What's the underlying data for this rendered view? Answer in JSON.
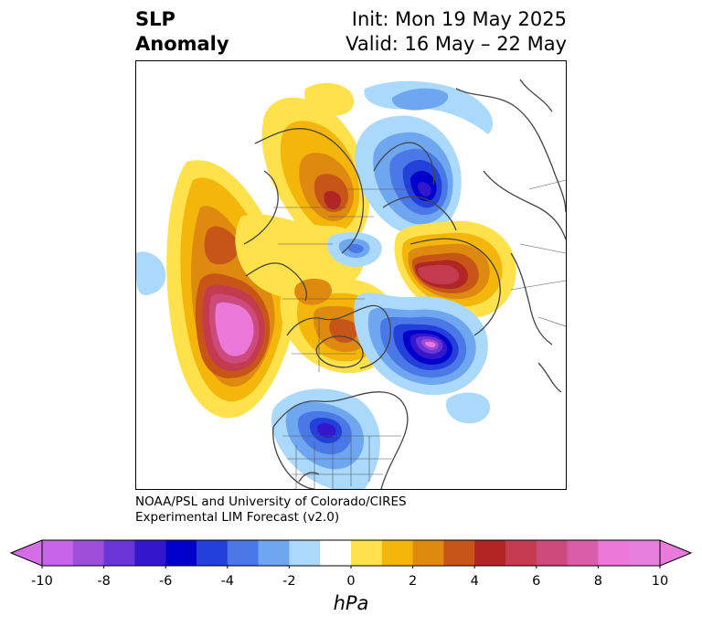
{
  "header": {
    "variable_line1": "SLP",
    "variable_line2": "Anomaly",
    "init_text": "Init: Mon 19 May 2025",
    "valid_text": "Valid: 16 May – 22 May"
  },
  "credit": {
    "line1": "NOAA/PSL and University of Colorado/CIRES",
    "line2": "Experimental LIM Forecast (v2.0)"
  },
  "colorbar": {
    "unit": "hPa",
    "levels": [
      -10,
      -9,
      -8,
      -7,
      -6,
      -5,
      -4,
      -3,
      -2,
      -1,
      1,
      2,
      3,
      4,
      5,
      6,
      7,
      8,
      9,
      10
    ],
    "colors": [
      "#c764e9",
      "#9c4ed9",
      "#6a35d6",
      "#3417cc",
      "#0000cd",
      "#2341da",
      "#4a78e6",
      "#6fa6f0",
      "#abd9fb",
      "#ffffff",
      "#ffe14b",
      "#f4b60a",
      "#de8a10",
      "#c85518",
      "#b12525",
      "#c43b4f",
      "#cc4a7c",
      "#d85ca8",
      "#e978d9",
      "#e67ede"
    ],
    "ticks": [
      "-10",
      "-8",
      "-6",
      "-4",
      "-2",
      "0",
      "2",
      "4",
      "6",
      "8",
      "10"
    ],
    "extend_low_color": "#d46de6",
    "extend_high_color": "#e87bdc"
  },
  "map": {
    "projection": "polar-stereographic",
    "region": "North Hemisphere",
    "anomaly_features": [
      {
        "kind": "high",
        "region": "Northeast Pacific",
        "peak_hpa": 10
      },
      {
        "kind": "low",
        "region": "North Atlantic south of Greenland",
        "peak_hpa": -9
      },
      {
        "kind": "low",
        "region": "Northern Europe / Scandinavia",
        "peak_hpa": -7
      },
      {
        "kind": "high",
        "region": "Western Russia",
        "peak_hpa": 8
      },
      {
        "kind": "high",
        "region": "Siberia",
        "peak_hpa": 6
      },
      {
        "kind": "low",
        "region": "Central United States",
        "peak_hpa": -6
      },
      {
        "kind": "high",
        "region": "Hudson Bay / Canada",
        "peak_hpa": 5
      },
      {
        "kind": "high",
        "region": "Bering Sea",
        "peak_hpa": 5
      }
    ]
  }
}
